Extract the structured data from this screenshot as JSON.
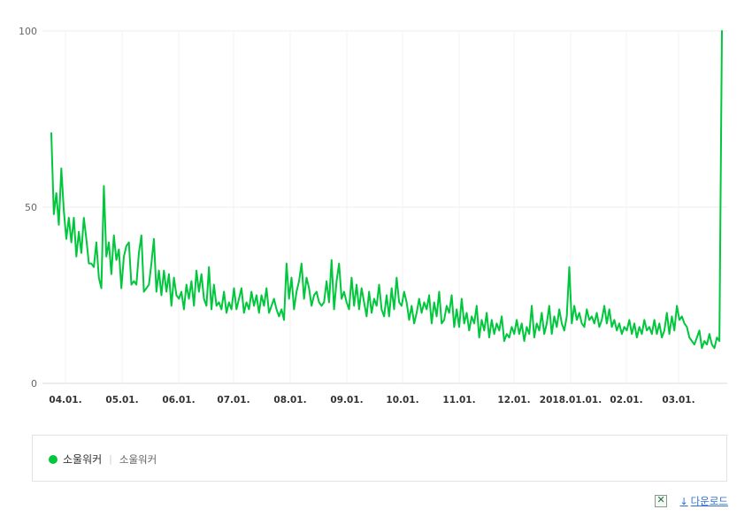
{
  "chart_data": {
    "type": "line",
    "title": "",
    "xlabel": "",
    "ylabel": "",
    "ylim": [
      0,
      100
    ],
    "yticks": [
      "0",
      "50",
      "100"
    ],
    "grid": true,
    "x_tick_labels": [
      "04.01.",
      "05.01.",
      "06.01.",
      "07.01.",
      "08.01.",
      "09.01.",
      "10.01.",
      "11.01.",
      "12.01.",
      "2018.01.01.",
      "02.01.",
      "03.01."
    ],
    "series": [
      {
        "name": "소울워커",
        "color": "#00c73c",
        "values": [
          71,
          48,
          54,
          45,
          61,
          49,
          41,
          47,
          40,
          47,
          36,
          43,
          37,
          47,
          41,
          34,
          34,
          33,
          40,
          30,
          27,
          56,
          36,
          40,
          31,
          42,
          35,
          38,
          27,
          36,
          39,
          40,
          28,
          29,
          28,
          37,
          42,
          26,
          27,
          28,
          34,
          41,
          26,
          32,
          25,
          32,
          26,
          31,
          22,
          30,
          25,
          24,
          26,
          21,
          28,
          24,
          29,
          22,
          32,
          26,
          31,
          24,
          22,
          33,
          21,
          28,
          22,
          23,
          21,
          26,
          20,
          23,
          21,
          27,
          21,
          24,
          27,
          20,
          23,
          21,
          26,
          22,
          25,
          20,
          25,
          22,
          27,
          20,
          22,
          24,
          21,
          19,
          21,
          18,
          34,
          24,
          30,
          21,
          26,
          29,
          34,
          24,
          30,
          27,
          22,
          25,
          26,
          23,
          22,
          23,
          29,
          23,
          35,
          21,
          29,
          34,
          24,
          26,
          23,
          21,
          30,
          22,
          28,
          21,
          27,
          23,
          19,
          26,
          20,
          24,
          22,
          28,
          21,
          19,
          25,
          19,
          27,
          21,
          30,
          23,
          22,
          26,
          23,
          18,
          22,
          17,
          20,
          24,
          20,
          23,
          21,
          25,
          17,
          23,
          19,
          26,
          17,
          18,
          22,
          20,
          25,
          16,
          21,
          16,
          24,
          17,
          20,
          15,
          19,
          17,
          22,
          13,
          18,
          15,
          20,
          13,
          18,
          14,
          17,
          15,
          19,
          12,
          14,
          13,
          16,
          14,
          18,
          14,
          17,
          12,
          16,
          14,
          22,
          13,
          17,
          15,
          20,
          14,
          17,
          22,
          14,
          19,
          16,
          21,
          17,
          15,
          19,
          33,
          17,
          22,
          18,
          20,
          17,
          16,
          21,
          18,
          19,
          17,
          20,
          16,
          18,
          22,
          17,
          21,
          16,
          18,
          15,
          17,
          14,
          16,
          15,
          18,
          14,
          17,
          13,
          16,
          14,
          18,
          15,
          16,
          14,
          18,
          14,
          17,
          13,
          15,
          20,
          14,
          19,
          15,
          22,
          18,
          19,
          17,
          16,
          13,
          12,
          11,
          13,
          15,
          10,
          12,
          11,
          14,
          11,
          10,
          13,
          12,
          100
        ]
      }
    ]
  },
  "legend": {
    "series_label": "소울워커",
    "sub_label": "소울워커",
    "dot_color": "#00c73c"
  },
  "footer": {
    "download_label": "다운로드"
  }
}
